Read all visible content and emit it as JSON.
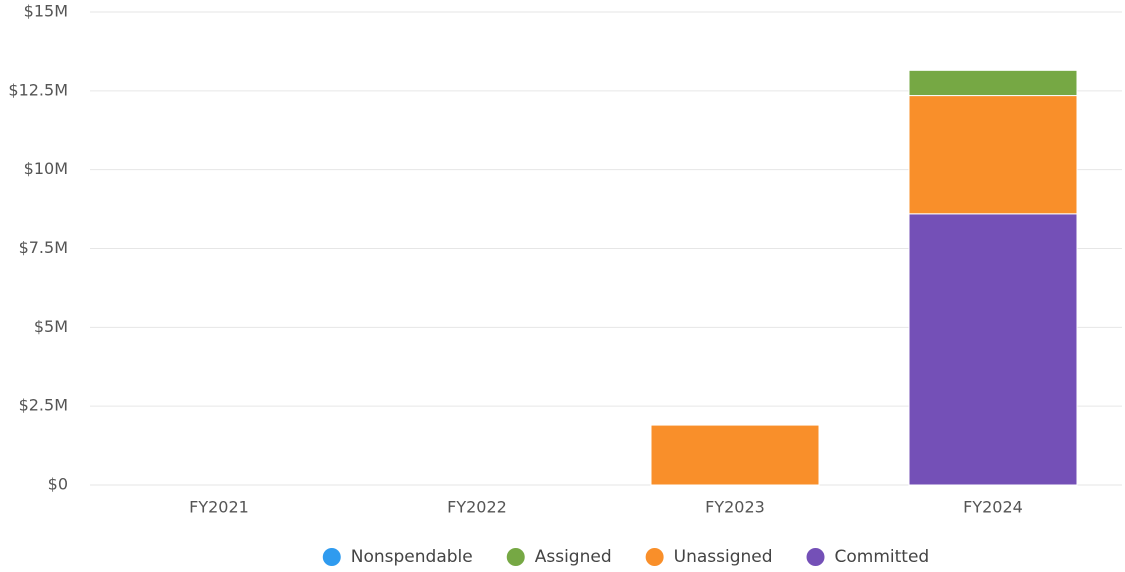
{
  "chart_data": {
    "type": "stacked-bar",
    "categories": [
      "FY2021",
      "FY2022",
      "FY2023",
      "FY2024"
    ],
    "series": [
      {
        "name": "Nonspendable",
        "color": "#2f9bef",
        "values": [
          0,
          0,
          0,
          0
        ]
      },
      {
        "name": "Assigned",
        "color": "#76a844",
        "values": [
          0,
          0,
          0,
          800000
        ]
      },
      {
        "name": "Unassigned",
        "color": "#f98f2a",
        "values": [
          0,
          0,
          1900000,
          3750000
        ]
      },
      {
        "name": "Committed",
        "color": "#7450b7",
        "values": [
          0,
          0,
          0,
          8600000
        ]
      }
    ],
    "ylim": [
      0,
      15000000
    ],
    "yticks": [
      {
        "value": 0,
        "label": "$0"
      },
      {
        "value": 2500000,
        "label": "$2.5M"
      },
      {
        "value": 5000000,
        "label": "$5M"
      },
      {
        "value": 7500000,
        "label": "$7.5M"
      },
      {
        "value": 10000000,
        "label": "$10M"
      },
      {
        "value": 12500000,
        "label": "$12.5M"
      },
      {
        "value": 15000000,
        "label": "$15M"
      }
    ],
    "grid": true,
    "legend": "bottom"
  }
}
